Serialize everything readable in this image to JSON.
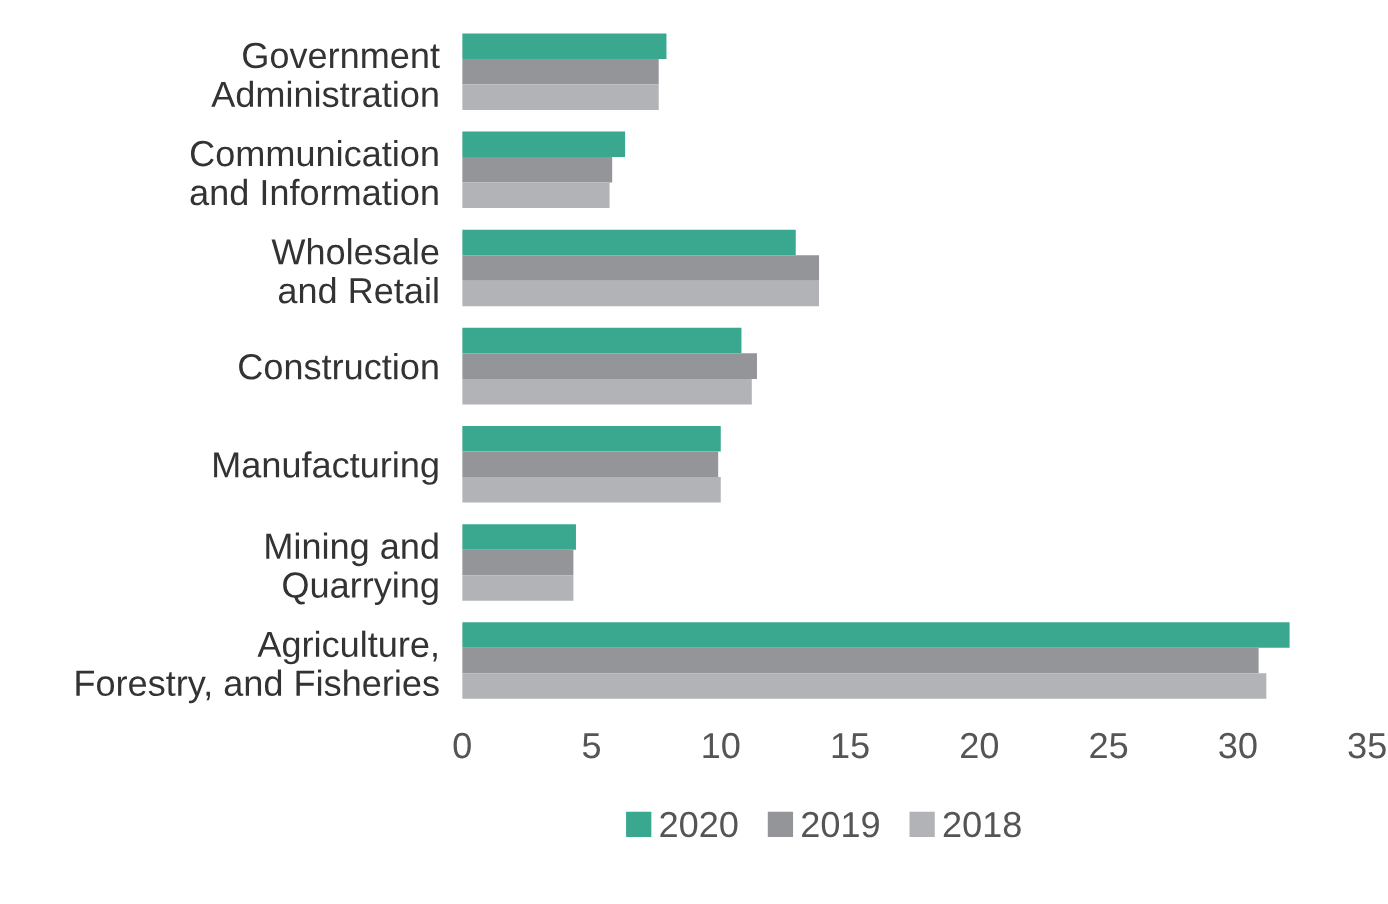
{
  "chart_data": {
    "type": "bar",
    "orientation": "horizontal",
    "categories": [
      "Government\nAdministration",
      "Communication\nand Information",
      "Wholesale\nand Retail",
      "Construction",
      "Manufacturing",
      "Mining and\nQuarrying",
      "Agriculture,\nForestry, and Fisheries"
    ],
    "series": [
      {
        "name": "2020",
        "color": "#3aa88f",
        "values": [
          7.9,
          6.3,
          12.9,
          10.8,
          10.0,
          4.4,
          32.0
        ]
      },
      {
        "name": "2019",
        "color": "#939598",
        "values": [
          7.6,
          5.8,
          13.8,
          11.4,
          9.9,
          4.3,
          30.8
        ]
      },
      {
        "name": "2018",
        "color": "#b2b3b6",
        "values": [
          7.6,
          5.7,
          13.8,
          11.2,
          10.0,
          4.3,
          31.1
        ]
      }
    ],
    "xlim": [
      0,
      35
    ],
    "xticks": [
      0,
      5,
      10,
      15,
      20,
      25,
      30,
      35
    ],
    "grid": false,
    "legend": "bottom"
  }
}
